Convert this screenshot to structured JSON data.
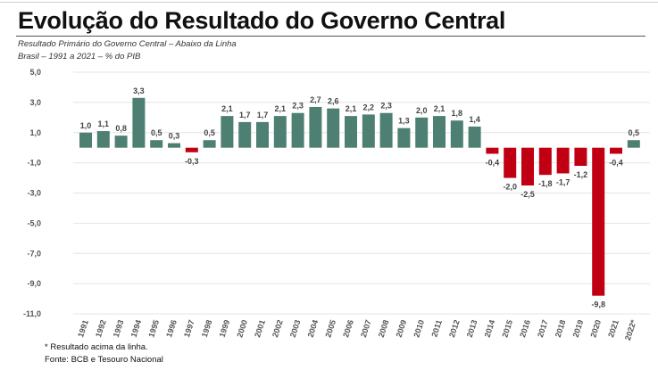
{
  "title": "Evolução do Resultado do Governo Central",
  "subtitle1": "Resultado Primário do Governo Central – Abaixo da Linha",
  "subtitle2": "Brasil – 1991 a 2021 – % do PIB",
  "footnote1": "* Resultado acima da linha.",
  "footnote2": "Fonte: BCB e Tesouro Nacional",
  "chart_data": {
    "type": "bar",
    "title": "Evolução do Resultado do Governo Central",
    "xlabel": "",
    "ylabel": "% do PIB",
    "ylim": [
      -11,
      5
    ],
    "yticks": [
      5,
      3,
      1,
      -1,
      -3,
      -5,
      -7,
      -9,
      -11
    ],
    "ytick_labels": [
      "5,0",
      "3,0",
      "1,0",
      "-1,0",
      "-3,0",
      "-5,0",
      "-7,0",
      "-9,0",
      "-11,0"
    ],
    "grid": true,
    "categories": [
      "1991",
      "1992",
      "1993",
      "1994",
      "1995",
      "1996",
      "1997",
      "1998",
      "1999",
      "2000",
      "2001",
      "2002",
      "2003",
      "2004",
      "2005",
      "2006",
      "2007",
      "2008",
      "2009",
      "2010",
      "2011",
      "2012",
      "2013",
      "2014",
      "2015",
      "2016",
      "2017",
      "2018",
      "2019",
      "2020",
      "2021",
      "2022*"
    ],
    "values": [
      1.0,
      1.1,
      0.8,
      3.3,
      0.5,
      0.3,
      -0.3,
      0.5,
      2.1,
      1.7,
      1.7,
      2.1,
      2.3,
      2.7,
      2.6,
      2.1,
      2.2,
      2.3,
      1.3,
      2.0,
      2.1,
      1.8,
      1.4,
      -0.4,
      -2.0,
      -2.5,
      -1.8,
      -1.7,
      -1.2,
      -9.8,
      -0.4,
      0.5
    ],
    "colors": {
      "positive": "#4e7f73",
      "negative": "#c00012"
    }
  }
}
